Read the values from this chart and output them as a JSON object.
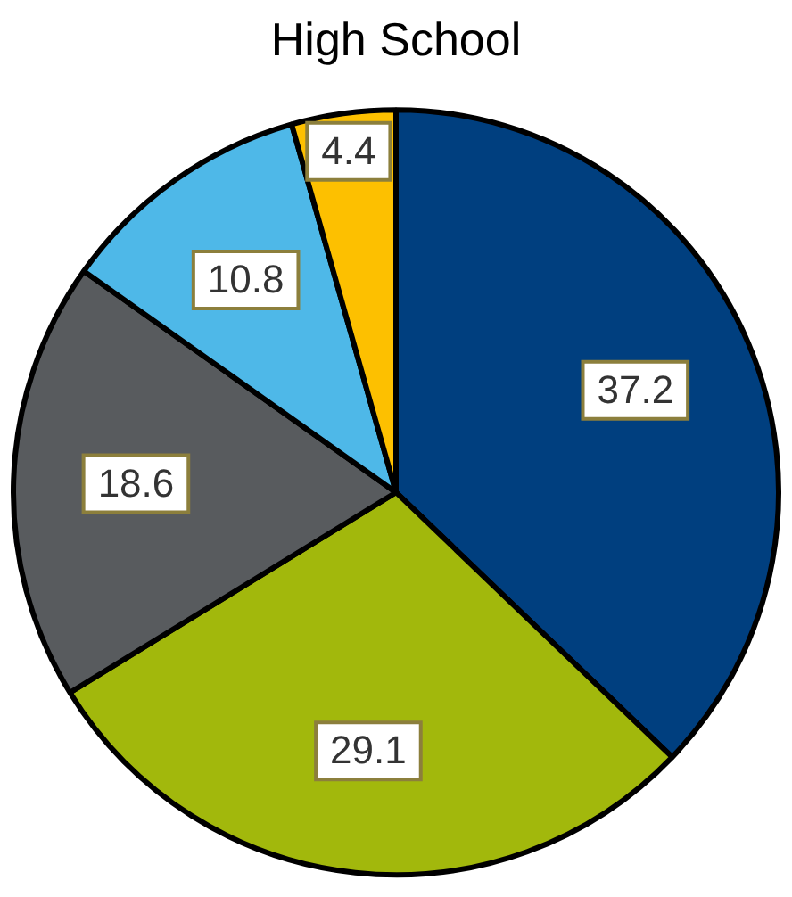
{
  "chart_data": {
    "type": "pie",
    "title": "High School",
    "categories": [
      null,
      null,
      null,
      null,
      null
    ],
    "values": [
      37.2,
      29.1,
      18.6,
      10.8,
      4.4
    ],
    "colors": [
      "#003f7f",
      "#a2b80c",
      "#585b5e",
      "#4eb8e8",
      "#fdc000"
    ],
    "data_labels": true,
    "legend": false
  }
}
